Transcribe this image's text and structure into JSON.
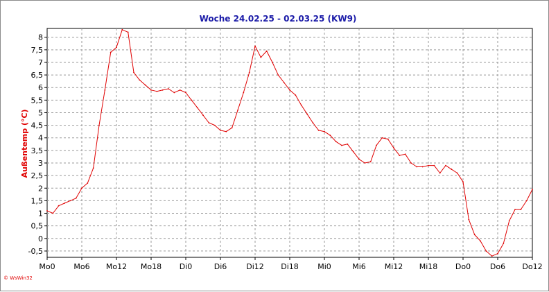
{
  "chart_data": {
    "type": "line",
    "title": "Woche 24.02.25 - 02.03.25 (KW9)",
    "xlabel": "",
    "ylabel": "Außentemp (°C)",
    "xlim": [
      0,
      84
    ],
    "ylim": [
      -0.75,
      8.35
    ],
    "grid": true,
    "x_ticks": [
      {
        "x": 0,
        "label": "Mo0"
      },
      {
        "x": 6,
        "label": "Mo6"
      },
      {
        "x": 12,
        "label": "Mo12"
      },
      {
        "x": 18,
        "label": "Mo18"
      },
      {
        "x": 24,
        "label": "Di0"
      },
      {
        "x": 30,
        "label": "Di6"
      },
      {
        "x": 36,
        "label": "Di12"
      },
      {
        "x": 42,
        "label": "Di18"
      },
      {
        "x": 48,
        "label": "Mi0"
      },
      {
        "x": 54,
        "label": "Mi6"
      },
      {
        "x": 60,
        "label": "Mi12"
      },
      {
        "x": 66,
        "label": "Mi18"
      },
      {
        "x": 72,
        "label": "Do0"
      },
      {
        "x": 78,
        "label": "Do6"
      },
      {
        "x": 84,
        "label": "Do12"
      }
    ],
    "y_ticks": [
      {
        "y": 8,
        "label": "8"
      },
      {
        "y": 7.5,
        "label": "7,5"
      },
      {
        "y": 7,
        "label": "7"
      },
      {
        "y": 6.5,
        "label": "6,5"
      },
      {
        "y": 6,
        "label": "6"
      },
      {
        "y": 5.5,
        "label": "5,5"
      },
      {
        "y": 5,
        "label": "5"
      },
      {
        "y": 4.5,
        "label": "4,5"
      },
      {
        "y": 4,
        "label": "4"
      },
      {
        "y": 3.5,
        "label": "3,5"
      },
      {
        "y": 3,
        "label": "3"
      },
      {
        "y": 2.5,
        "label": "2,5"
      },
      {
        "y": 2,
        "label": "2"
      },
      {
        "y": 1.5,
        "label": "1,5"
      },
      {
        "y": 1,
        "label": "1"
      },
      {
        "y": 0.5,
        "label": "0,5"
      },
      {
        "y": 0,
        "label": "0"
      },
      {
        "y": -0.5,
        "label": "-0,5"
      }
    ],
    "series": [
      {
        "color": "#e00000",
        "x": [
          0,
          1,
          2,
          3,
          4,
          5,
          6,
          7,
          8,
          9,
          10,
          11,
          12,
          13,
          14,
          15,
          16,
          17,
          18,
          19,
          20,
          21,
          22,
          23,
          24,
          25,
          26,
          27,
          28,
          29,
          30,
          31,
          32,
          33,
          34,
          35,
          36,
          37,
          38,
          39,
          40,
          41,
          42,
          43,
          44,
          45,
          46,
          47,
          48,
          49,
          50,
          51,
          52,
          53,
          54,
          55,
          56,
          57,
          58,
          59,
          60,
          61,
          62,
          63,
          64,
          65,
          66,
          67,
          68,
          69,
          70,
          71,
          72,
          73,
          74,
          75,
          76,
          77,
          78,
          79,
          80,
          81,
          82,
          83,
          84
        ],
        "y": [
          1.1,
          1.0,
          1.3,
          1.4,
          1.5,
          1.6,
          2.0,
          2.2,
          2.8,
          4.5,
          5.9,
          7.4,
          7.6,
          8.3,
          8.2,
          6.6,
          6.3,
          6.1,
          5.9,
          5.85,
          5.9,
          5.95,
          5.8,
          5.9,
          5.8,
          5.5,
          5.2,
          4.9,
          4.6,
          4.5,
          4.3,
          4.25,
          4.4,
          5.1,
          5.8,
          6.6,
          7.65,
          7.2,
          7.45,
          7.0,
          6.5,
          6.2,
          5.9,
          5.7,
          5.3,
          4.95,
          4.6,
          4.3,
          4.25,
          4.1,
          3.85,
          3.7,
          3.75,
          3.45,
          3.15,
          3.0,
          3.05,
          3.7,
          4.0,
          3.95,
          3.6,
          3.3,
          3.35,
          3.0,
          2.85,
          2.85,
          2.9,
          2.9,
          2.6,
          2.9,
          2.75,
          2.6,
          2.25,
          0.75,
          0.15,
          -0.1,
          -0.5,
          -0.7,
          -0.6,
          -0.2,
          0.7,
          1.15,
          1.15,
          1.5,
          1.95
        ]
      }
    ],
    "watermark": "© WsWin32"
  }
}
